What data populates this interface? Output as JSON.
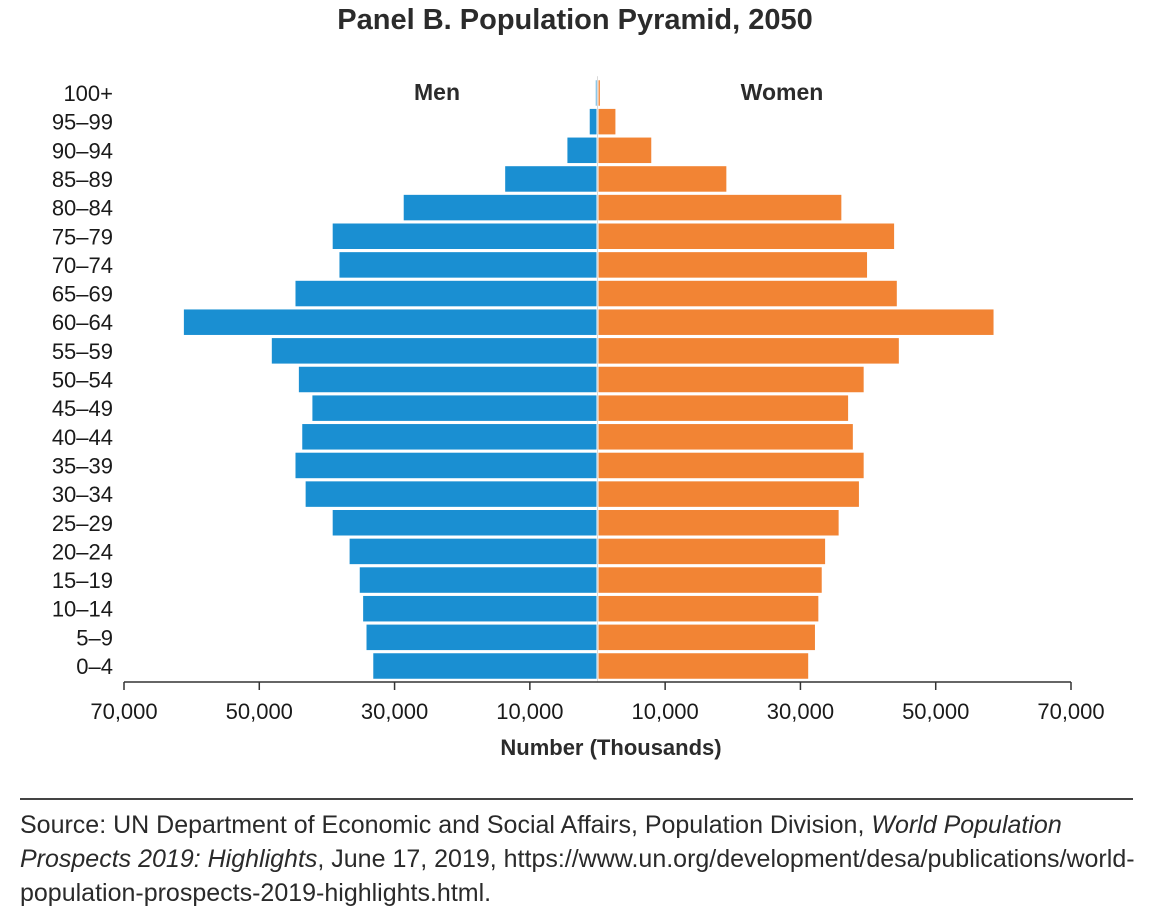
{
  "chart_data": {
    "type": "bar",
    "orientation": "horizontal-pyramid",
    "title": "Panel B. Population Pyramid, 2050",
    "xlabel": "Number (Thousands)",
    "categories": [
      "0–4",
      "5–9",
      "10–14",
      "15–19",
      "20–24",
      "25–29",
      "30–34",
      "35–39",
      "40–44",
      "45–49",
      "50–54",
      "55–59",
      "60–64",
      "65–69",
      "70–74",
      "75–79",
      "80–84",
      "85–89",
      "90–94",
      "95–99",
      "100+"
    ],
    "series": [
      {
        "name": "Men",
        "side": "left",
        "color": "#1a8fd2",
        "values": [
          33000,
          34000,
          34500,
          35000,
          36500,
          39000,
          43000,
          44500,
          43500,
          42000,
          44000,
          48000,
          61000,
          44500,
          38000,
          39000,
          28500,
          13500,
          4300,
          1000,
          100
        ]
      },
      {
        "name": "Women",
        "side": "right",
        "color": "#f28434",
        "values": [
          31000,
          32000,
          32500,
          33000,
          33500,
          35500,
          38500,
          39200,
          37600,
          36900,
          39200,
          44400,
          58400,
          44100,
          39700,
          43700,
          35900,
          18900,
          7800,
          2500,
          200
        ]
      }
    ],
    "xlim": [
      -70000,
      70000
    ],
    "xticks": [
      -70000,
      -50000,
      -30000,
      -10000,
      10000,
      30000,
      50000,
      70000
    ],
    "xtick_labels": [
      "70,000",
      "50,000",
      "30,000",
      "10,000",
      "10,000",
      "30,000",
      "50,000",
      "70,000"
    ],
    "grid": false,
    "legend": "labels above each side"
  },
  "source": {
    "prefix": "Source: UN Department of Economic and Social Affairs, Population Division, ",
    "italic": "World Population Prospects 2019: Highlights",
    "suffix": ", June 17, 2019, https://www.un.org/development/desa/publications/world-population-prospects-2019-highlights.html."
  }
}
